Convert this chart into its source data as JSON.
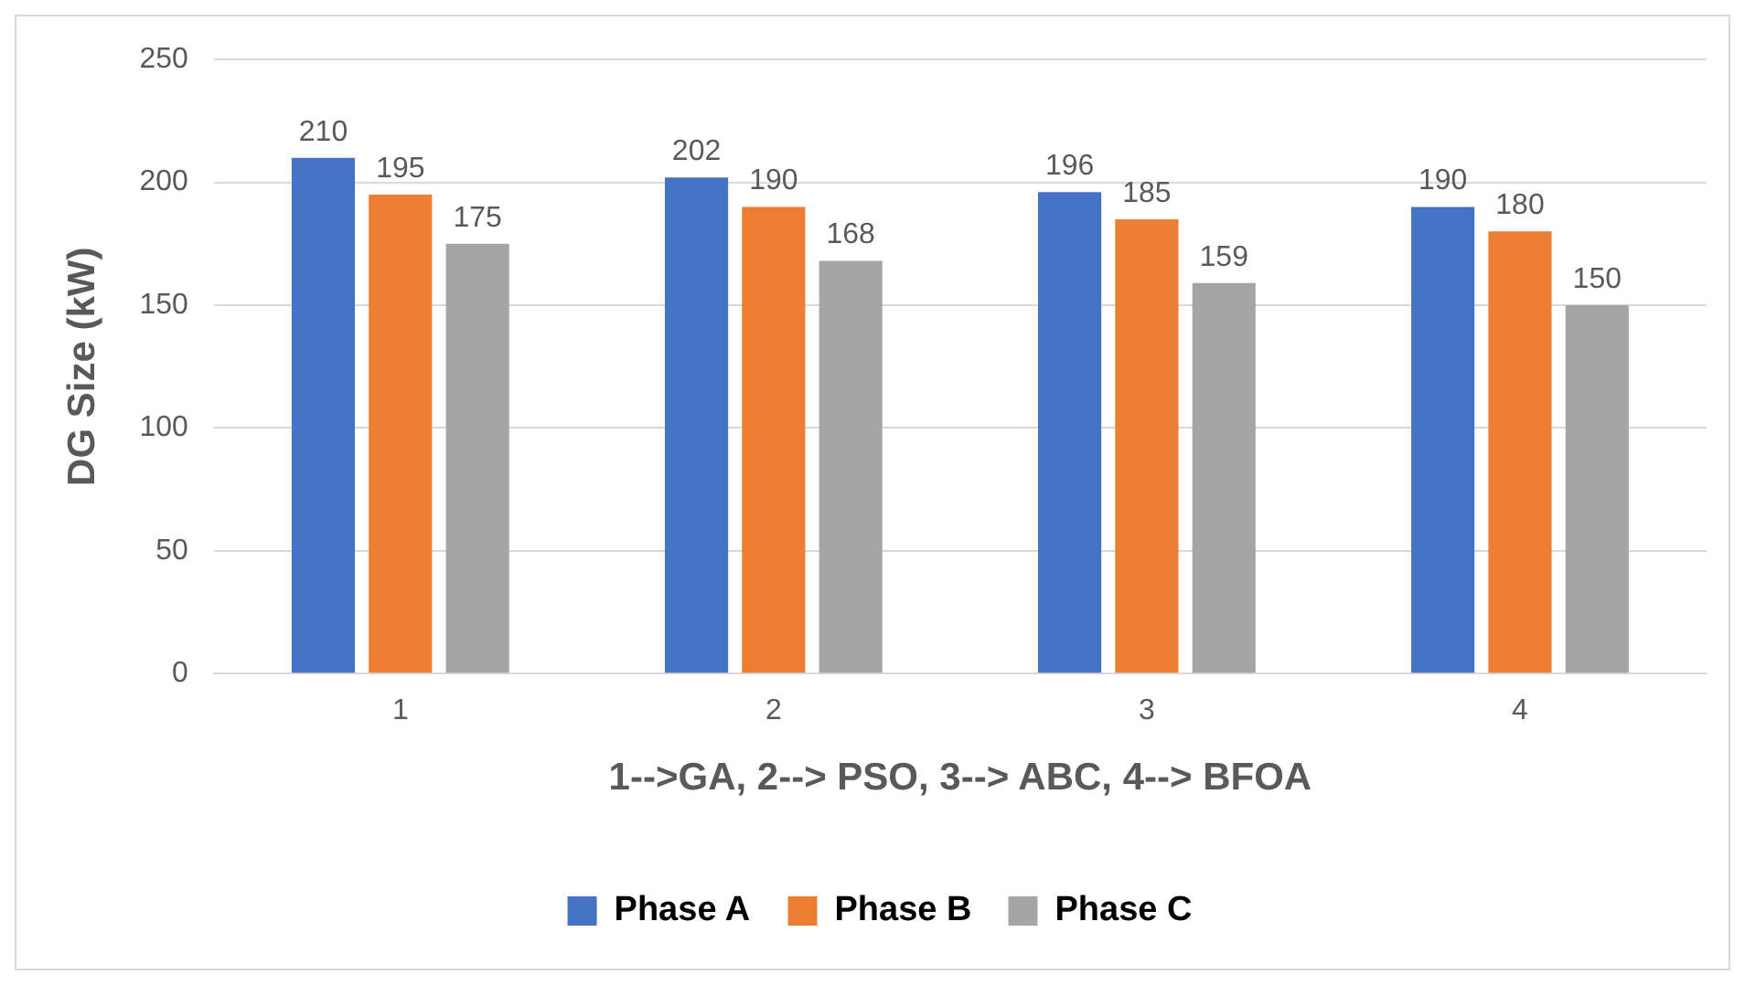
{
  "chart_data": {
    "type": "bar",
    "xlabel": "1-->GA, 2--> PSO, 3--> ABC, 4--> BFOA",
    "ylabel": "DG Size (kW)",
    "categories": [
      "1",
      "2",
      "3",
      "4"
    ],
    "series": [
      {
        "name": "Phase A",
        "color": "#4472c4",
        "values": [
          210,
          202,
          196,
          190
        ]
      },
      {
        "name": "Phase B",
        "color": "#ed7d31",
        "values": [
          195,
          190,
          185,
          180
        ]
      },
      {
        "name": "Phase C",
        "color": "#a5a5a5",
        "values": [
          175,
          168,
          159,
          150
        ]
      }
    ],
    "ylim": [
      0,
      250
    ],
    "yticks": [
      0,
      50,
      100,
      150,
      200,
      250
    ],
    "grid": "y",
    "legend": "bottom",
    "data_labels": true
  }
}
